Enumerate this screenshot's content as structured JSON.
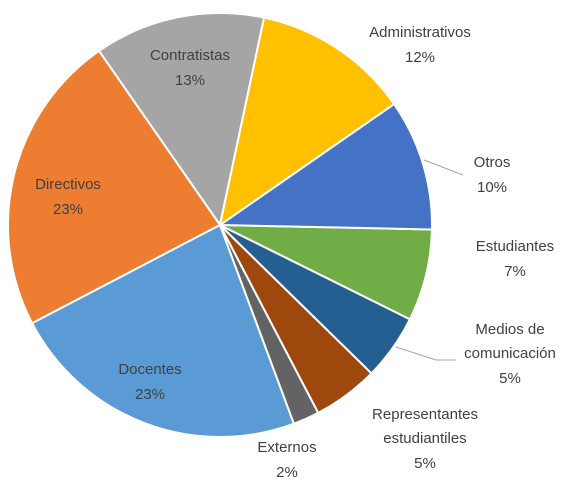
{
  "chart_data": {
    "type": "pie",
    "categories": [
      "Administrativos",
      "Otros",
      "Estudiantes",
      "Medios de comunicación",
      "Representantes estudiantiles",
      "Externos",
      "Docentes",
      "Directivos",
      "Contratistas"
    ],
    "values": [
      12,
      10,
      7,
      5,
      5,
      2,
      23,
      23,
      13
    ],
    "value_labels": [
      "12%",
      "10%",
      "7%",
      "5%",
      "5%",
      "2%",
      "23%",
      "23%",
      "13%"
    ],
    "colors": [
      "#ffc000",
      "#4472c4",
      "#70ad47",
      "#255e91",
      "#9e480e",
      "#636363",
      "#5b9bd5",
      "#ed7d31",
      "#a5a5a5"
    ]
  }
}
